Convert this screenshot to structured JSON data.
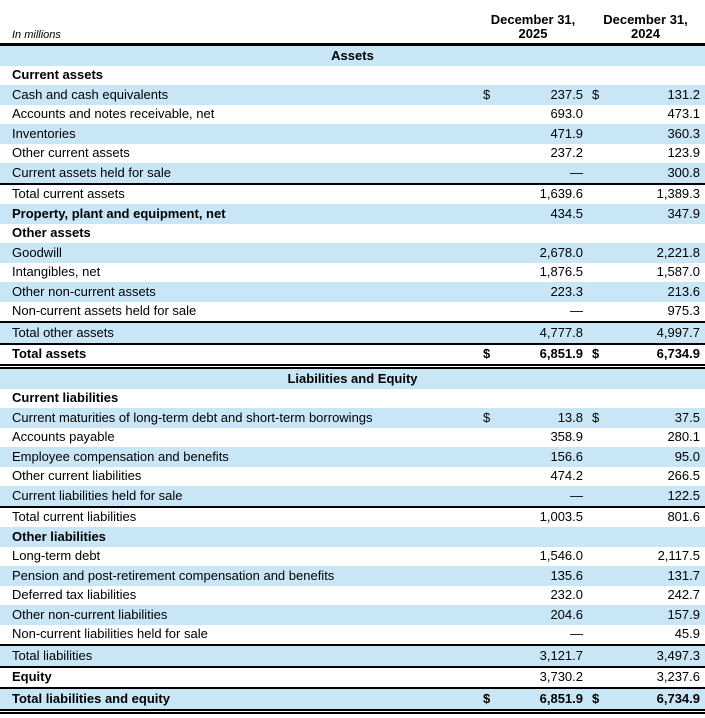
{
  "document": {
    "units_label": "In millions",
    "column_headers": [
      "December 31,\n2025",
      "December 31,\n2024"
    ]
  },
  "colors": {
    "row_highlight": "#c8e6f6",
    "rule_color": "#000000"
  },
  "table": {
    "rows": [
      {
        "type": "title",
        "shade": true,
        "label": "Assets"
      },
      {
        "type": "header",
        "shade": false,
        "label": "Current assets"
      },
      {
        "type": "item",
        "shade": true,
        "label": "Cash and cash equivalents",
        "cur1": "$",
        "v1": "237.5",
        "cur2": "$",
        "v2": "131.2"
      },
      {
        "type": "item",
        "shade": false,
        "label": "Accounts and notes receivable, net",
        "cur1": "",
        "v1": "693.0",
        "cur2": "",
        "v2": "473.1"
      },
      {
        "type": "item",
        "shade": true,
        "label": "Inventories",
        "cur1": "",
        "v1": "471.9",
        "cur2": "",
        "v2": "360.3"
      },
      {
        "type": "item",
        "shade": false,
        "label": "Other current assets",
        "cur1": "",
        "v1": "237.2",
        "cur2": "",
        "v2": "123.9"
      },
      {
        "type": "item",
        "shade": true,
        "label": "Current assets held for sale",
        "cur1": "",
        "v1": "—",
        "cur2": "",
        "v2": "300.8"
      },
      {
        "type": "total",
        "shade": false,
        "label": "Total current assets",
        "cur1": "",
        "v1": "1,639.6",
        "cur2": "",
        "v2": "1,389.3",
        "bt": "s"
      },
      {
        "type": "bolditem",
        "shade": true,
        "label": "Property, plant and equipment, net",
        "cur1": "",
        "v1": "434.5",
        "cur2": "",
        "v2": "347.9"
      },
      {
        "type": "header",
        "shade": false,
        "label": "Other assets"
      },
      {
        "type": "item",
        "shade": true,
        "label": "Goodwill",
        "cur1": "",
        "v1": "2,678.0",
        "cur2": "",
        "v2": "2,221.8"
      },
      {
        "type": "item",
        "shade": false,
        "label": "Intangibles, net",
        "cur1": "",
        "v1": "1,876.5",
        "cur2": "",
        "v2": "1,587.0"
      },
      {
        "type": "item",
        "shade": true,
        "label": "Other non-current assets",
        "cur1": "",
        "v1": "223.3",
        "cur2": "",
        "v2": "213.6"
      },
      {
        "type": "item",
        "shade": false,
        "label": "Non-current assets held for sale",
        "cur1": "",
        "v1": "—",
        "cur2": "",
        "v2": "975.3"
      },
      {
        "type": "total",
        "shade": true,
        "label": "Total other assets",
        "cur1": "",
        "v1": "4,777.8",
        "cur2": "",
        "v2": "4,997.7",
        "bt": "s"
      },
      {
        "type": "grandtotal",
        "shade": false,
        "label": "Total assets",
        "cur1": "$",
        "v1": "6,851.9",
        "cur2": "$",
        "v2": "6,734.9",
        "bt": "s",
        "bb": "d"
      },
      {
        "type": "title",
        "shade": true,
        "label": "Liabilities and Equity"
      },
      {
        "type": "header",
        "shade": false,
        "label": "Current liabilities"
      },
      {
        "type": "item",
        "shade": true,
        "label": "Current maturities of long-term debt and short-term borrowings",
        "cur1": "$",
        "v1": "13.8",
        "cur2": "$",
        "v2": "37.5"
      },
      {
        "type": "item",
        "shade": false,
        "label": "Accounts payable",
        "cur1": "",
        "v1": "358.9",
        "cur2": "",
        "v2": "280.1"
      },
      {
        "type": "item",
        "shade": true,
        "label": "Employee compensation and benefits",
        "cur1": "",
        "v1": "156.6",
        "cur2": "",
        "v2": "95.0"
      },
      {
        "type": "item",
        "shade": false,
        "label": "Other current liabilities",
        "cur1": "",
        "v1": "474.2",
        "cur2": "",
        "v2": "266.5"
      },
      {
        "type": "item",
        "shade": true,
        "label": "Current liabilities held for sale",
        "cur1": "",
        "v1": "—",
        "cur2": "",
        "v2": "122.5"
      },
      {
        "type": "total",
        "shade": false,
        "label": "Total current liabilities",
        "cur1": "",
        "v1": "1,003.5",
        "cur2": "",
        "v2": "801.6",
        "bt": "s"
      },
      {
        "type": "header",
        "shade": true,
        "label": "Other liabilities"
      },
      {
        "type": "item",
        "shade": false,
        "label": "Long-term debt",
        "cur1": "",
        "v1": "1,546.0",
        "cur2": "",
        "v2": "2,117.5"
      },
      {
        "type": "item",
        "shade": true,
        "label": "Pension and post-retirement compensation and benefits",
        "cur1": "",
        "v1": "135.6",
        "cur2": "",
        "v2": "131.7"
      },
      {
        "type": "item",
        "shade": false,
        "label": "Deferred tax liabilities",
        "cur1": "",
        "v1": "232.0",
        "cur2": "",
        "v2": "242.7"
      },
      {
        "type": "item",
        "shade": true,
        "label": "Other non-current liabilities",
        "cur1": "",
        "v1": "204.6",
        "cur2": "",
        "v2": "157.9"
      },
      {
        "type": "item",
        "shade": false,
        "label": "Non-current liabilities held for sale",
        "cur1": "",
        "v1": "—",
        "cur2": "",
        "v2": "45.9"
      },
      {
        "type": "total",
        "shade": true,
        "label": "Total liabilities",
        "cur1": "",
        "v1": "3,121.7",
        "cur2": "",
        "v2": "3,497.3",
        "bt": "s"
      },
      {
        "type": "bolditem",
        "shade": false,
        "label": "Equity",
        "cur1": "",
        "v1": "3,730.2",
        "cur2": "",
        "v2": "3,237.6",
        "bt": "s"
      },
      {
        "type": "grandtotal",
        "shade": true,
        "label": "Total liabilities and equity",
        "cur1": "$",
        "v1": "6,851.9",
        "cur2": "$",
        "v2": "6,734.9",
        "bt": "s",
        "bb": "d"
      }
    ]
  }
}
